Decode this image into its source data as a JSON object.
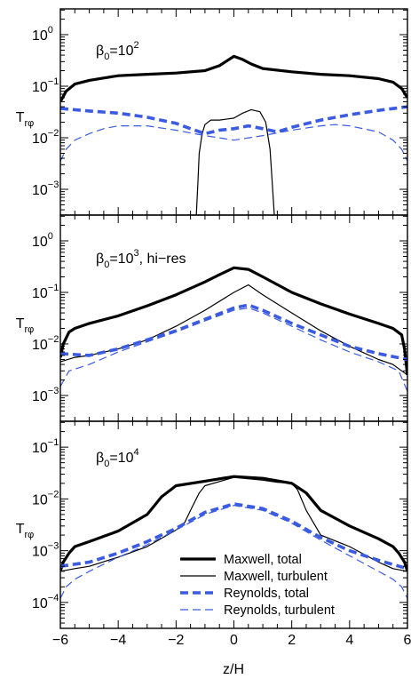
{
  "chart_data": [
    {
      "type": "line",
      "panel_label": {
        "base": "β",
        "sub": "0",
        "mid": "=10",
        "sup": "2",
        "suffix": ""
      },
      "ylabel": {
        "base": "T",
        "sub": "rφ"
      },
      "yscale": "log",
      "ylim_exp": [
        -3.5,
        0.5
      ],
      "yticks": [
        {
          "base": "10",
          "exp": "0"
        },
        {
          "base": "10",
          "exp": "-1"
        },
        {
          "base": "10",
          "exp": "-2"
        },
        {
          "base": "10",
          "exp": "-3"
        }
      ],
      "ytick_exps": [
        0,
        -1,
        -2,
        -3
      ],
      "xlim": [
        -6,
        6
      ],
      "series": [
        {
          "style": "maxwell-total",
          "color": "#000000",
          "x": [
            -6,
            -5.8,
            -5.5,
            -5,
            -4,
            -3,
            -2,
            -1,
            -0.5,
            0,
            0.3,
            0.6,
            1,
            2,
            3,
            4,
            5,
            5.5,
            5.8,
            6
          ],
          "y": [
            0.05,
            0.08,
            0.11,
            0.13,
            0.16,
            0.17,
            0.18,
            0.2,
            0.25,
            0.38,
            0.33,
            0.27,
            0.22,
            0.19,
            0.17,
            0.16,
            0.14,
            0.12,
            0.09,
            0.06
          ]
        },
        {
          "style": "maxwell-turbulent",
          "color": "#000000",
          "x": [
            -1.3,
            -1.25,
            -1.2,
            -1.1,
            -1,
            -0.8,
            -0.5,
            0,
            0.3,
            0.6,
            0.9,
            1.1,
            1.25,
            1.32,
            1.4
          ],
          "y": [
            0.0003,
            0.0012,
            0.005,
            0.012,
            0.018,
            0.022,
            0.022,
            0.024,
            0.03,
            0.035,
            0.032,
            0.02,
            0.006,
            0.0015,
            0.0003
          ]
        },
        {
          "style": "reynolds-total",
          "color": "#3b5be0",
          "x": [
            -6,
            -5,
            -4,
            -3,
            -2,
            -1.5,
            -1,
            -0.5,
            0,
            0.5,
            1,
            1.5,
            2,
            3,
            4,
            5,
            6
          ],
          "y": [
            0.037,
            0.033,
            0.03,
            0.025,
            0.019,
            0.015,
            0.012,
            0.014,
            0.015,
            0.017,
            0.015,
            0.013,
            0.016,
            0.022,
            0.028,
            0.034,
            0.04
          ]
        },
        {
          "style": "reynolds-turbulent",
          "color": "#3b5be0",
          "x": [
            -6,
            -5.8,
            -5.5,
            -5,
            -4.5,
            -4,
            -3,
            -2,
            -1,
            0,
            1,
            2,
            3,
            3.5,
            4,
            5,
            5.5,
            5.8,
            6
          ],
          "y": [
            0.0035,
            0.006,
            0.009,
            0.012,
            0.015,
            0.017,
            0.017,
            0.014,
            0.011,
            0.009,
            0.011,
            0.014,
            0.017,
            0.018,
            0.017,
            0.013,
            0.009,
            0.006,
            0.0035
          ]
        }
      ]
    },
    {
      "type": "line",
      "panel_label": {
        "base": "β",
        "sub": "0",
        "mid": "=10",
        "sup": "3",
        "suffix": ", hi−res"
      },
      "ylabel": {
        "base": "T",
        "sub": "rφ"
      },
      "yscale": "log",
      "ylim_exp": [
        -3.5,
        0.5
      ],
      "yticks": [
        {
          "base": "10",
          "exp": "0"
        },
        {
          "base": "10",
          "exp": "-1"
        },
        {
          "base": "10",
          "exp": "-2"
        },
        {
          "base": "10",
          "exp": "-3"
        }
      ],
      "ytick_exps": [
        0,
        -1,
        -2,
        -3
      ],
      "xlim": [
        -6,
        6
      ],
      "series": [
        {
          "style": "maxwell-total",
          "color": "#000000",
          "x": [
            -6,
            -5.9,
            -5.7,
            -5.5,
            -5,
            -4,
            -3,
            -2,
            -1,
            -0.5,
            0,
            0.5,
            1,
            2,
            3,
            4,
            5,
            5.5,
            5.8,
            5.9,
            6
          ],
          "y": [
            0.0055,
            0.01,
            0.017,
            0.02,
            0.025,
            0.035,
            0.055,
            0.09,
            0.16,
            0.22,
            0.3,
            0.28,
            0.2,
            0.1,
            0.06,
            0.038,
            0.025,
            0.02,
            0.015,
            0.008,
            0.0025
          ]
        },
        {
          "style": "maxwell-turbulent",
          "color": "#000000",
          "x": [
            -6,
            -5.5,
            -5,
            -4,
            -3,
            -2,
            -1,
            0,
            0.5,
            1,
            2,
            3,
            4,
            5,
            5.5,
            5.8,
            6
          ],
          "y": [
            0.0045,
            0.0055,
            0.006,
            0.008,
            0.012,
            0.022,
            0.045,
            0.1,
            0.14,
            0.09,
            0.04,
            0.018,
            0.009,
            0.005,
            0.004,
            0.003,
            0.0025
          ]
        },
        {
          "style": "reynolds-total",
          "color": "#3b5be0",
          "x": [
            -6,
            -5,
            -4,
            -3,
            -2,
            -1,
            0,
            0.5,
            1,
            2,
            3,
            4,
            5,
            6
          ],
          "y": [
            0.0065,
            0.006,
            0.008,
            0.012,
            0.018,
            0.03,
            0.05,
            0.057,
            0.045,
            0.025,
            0.015,
            0.009,
            0.0065,
            0.005
          ]
        },
        {
          "style": "reynolds-turbulent",
          "color": "#3b5be0",
          "x": [
            -6,
            -5.7,
            -5,
            -4,
            -3,
            -2,
            -1,
            0,
            0.5,
            1,
            2,
            3,
            4,
            5,
            5.7,
            6
          ],
          "y": [
            0.0015,
            0.003,
            0.004,
            0.007,
            0.011,
            0.017,
            0.028,
            0.045,
            0.05,
            0.04,
            0.022,
            0.012,
            0.007,
            0.0045,
            0.003,
            0.0012
          ]
        }
      ]
    },
    {
      "type": "line",
      "panel_label": {
        "base": "β",
        "sub": "0",
        "mid": "=10",
        "sup": "4",
        "suffix": ""
      },
      "ylabel": {
        "base": "T",
        "sub": "rφ"
      },
      "yscale": "log",
      "ylim_exp": [
        -4.5,
        -0.5
      ],
      "yticks": [
        {
          "base": "10",
          "exp": "-1"
        },
        {
          "base": "10",
          "exp": "-2"
        },
        {
          "base": "10",
          "exp": "-3"
        },
        {
          "base": "10",
          "exp": "-4"
        }
      ],
      "ytick_exps": [
        -1,
        -2,
        -3,
        -4
      ],
      "xlim": [
        -6,
        6
      ],
      "xticks": [
        "−6",
        "−4",
        "−2",
        "0",
        "2",
        "4",
        "6"
      ],
      "xtick_values": [
        -6,
        -4,
        -2,
        0,
        2,
        4,
        6
      ],
      "xlabel": "z/H",
      "legend": [
        {
          "label": "Maxwell, total",
          "style": "maxwell-total",
          "color": "#000000"
        },
        {
          "label": "Maxwell, turbulent",
          "style": "maxwell-turbulent",
          "color": "#000000"
        },
        {
          "label": "Reynolds, total",
          "style": "reynolds-total",
          "color": "#3b5be0"
        },
        {
          "label": "Reynolds, turbulent",
          "style": "reynolds-turbulent",
          "color": "#3b5be0"
        }
      ],
      "series": [
        {
          "style": "maxwell-total",
          "color": "#000000",
          "x": [
            -6,
            -5.9,
            -5.7,
            -5.5,
            -5,
            -4,
            -3,
            -2.5,
            -2,
            -1,
            0,
            1,
            2,
            2.5,
            3,
            4,
            5,
            5.5,
            5.7,
            5.9,
            6
          ],
          "y": [
            0.0004,
            0.0006,
            0.0009,
            0.0012,
            0.0015,
            0.0024,
            0.005,
            0.011,
            0.018,
            0.022,
            0.027,
            0.025,
            0.02,
            0.013,
            0.006,
            0.003,
            0.0017,
            0.0012,
            0.0009,
            0.0006,
            0.0004
          ]
        },
        {
          "style": "maxwell-turbulent",
          "color": "#000000",
          "x": [
            -6,
            -5.5,
            -5,
            -4,
            -3,
            -2,
            -1.7,
            -1.5,
            -1.2,
            -1,
            0,
            1,
            1.5,
            2,
            2.2,
            2.5,
            3,
            4,
            5,
            5.5,
            6
          ],
          "y": [
            0.0004,
            0.00045,
            0.0005,
            0.00075,
            0.0012,
            0.0025,
            0.0035,
            0.006,
            0.013,
            0.018,
            0.026,
            0.023,
            0.021,
            0.02,
            0.015,
            0.006,
            0.002,
            0.0012,
            0.0006,
            0.00045,
            0.0004
          ]
        },
        {
          "style": "reynolds-total",
          "color": "#3b5be0",
          "x": [
            -6,
            -5,
            -4,
            -3,
            -2,
            -1,
            0,
            1,
            2,
            3,
            4,
            5,
            6
          ],
          "y": [
            0.0005,
            0.0006,
            0.0009,
            0.0015,
            0.0027,
            0.0055,
            0.008,
            0.0065,
            0.0037,
            0.0018,
            0.001,
            0.00065,
            0.00045
          ]
        },
        {
          "style": "reynolds-turbulent",
          "color": "#3b5be0",
          "x": [
            -6,
            -5.8,
            -5.5,
            -5,
            -4,
            -3,
            -2,
            -1,
            0,
            1,
            2,
            3,
            4,
            5,
            5.5,
            5.8,
            6
          ],
          "y": [
            0.00012,
            0.0002,
            0.00028,
            0.0004,
            0.00075,
            0.0013,
            0.0025,
            0.005,
            0.0075,
            0.006,
            0.0034,
            0.0016,
            0.0008,
            0.0004,
            0.00028,
            0.0002,
            0.00012
          ]
        }
      ]
    }
  ]
}
